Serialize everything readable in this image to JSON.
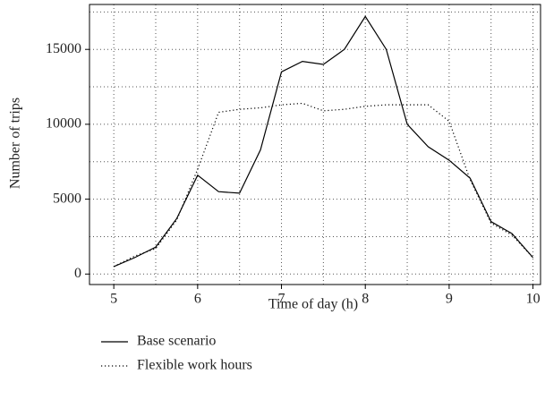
{
  "chart_data": {
    "type": "line",
    "x_label": "Time of day (h)",
    "y_label": "Number of trips",
    "x": [
      5,
      5.25,
      5.5,
      5.75,
      6,
      6.25,
      6.5,
      6.75,
      7,
      7.25,
      7.5,
      7.75,
      8,
      8.25,
      8.5,
      8.75,
      9,
      9.25,
      9.5,
      9.75,
      10
    ],
    "series": [
      {
        "name": "Base scenario",
        "color": "#000000",
        "dash": "solid",
        "values": [
          500,
          1100,
          1800,
          3700,
          6600,
          5500,
          5400,
          8300,
          13500,
          14200,
          14000,
          15000,
          17200,
          15000,
          10000,
          8500,
          7600,
          6400,
          3500,
          2700,
          1100
        ]
      },
      {
        "name": "Flexible work hours",
        "color": "#000000",
        "dash": "dotted",
        "values": [
          500,
          1200,
          1700,
          3600,
          7000,
          10800,
          11000,
          11100,
          11300,
          11400,
          10900,
          11000,
          11200,
          11300,
          11300,
          11300,
          10200,
          6300,
          3400,
          2600,
          1100
        ]
      }
    ],
    "xlim": [
      4.71,
      10.09
    ],
    "ylim": [
      -700,
      18000
    ],
    "xticks": [
      5,
      6,
      7,
      8,
      9,
      10
    ],
    "yticks": [
      0,
      5000,
      10000,
      15000
    ],
    "x_minor_grid": [
      5.5,
      6.5,
      7.5,
      8.5,
      9.5
    ],
    "y_minor_grid": [
      2500,
      7500,
      12500,
      17500
    ],
    "grid": true,
    "legend": "below"
  }
}
